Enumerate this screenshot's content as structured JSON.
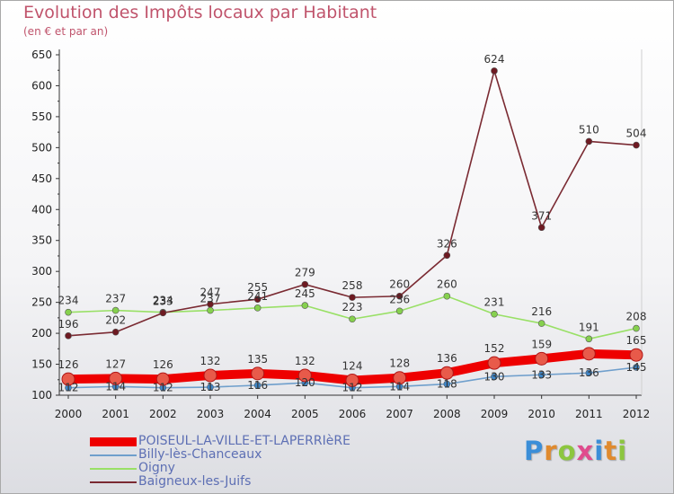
{
  "title": "Evolution des Impôts locaux par Habitant",
  "subtitle": "(en € et par an)",
  "brand": {
    "text": "Proxiti",
    "colors": [
      "#3b8ed8",
      "#e08a2e",
      "#8cc63f",
      "#e04b8d",
      "#3b8ed8",
      "#e08a2e",
      "#8cc63f"
    ]
  },
  "chart_data": {
    "type": "line",
    "title": "Evolution des Impôts locaux par Habitant",
    "subtitle": "(en € et par an)",
    "x": [
      "2000",
      "2001",
      "2002",
      "2003",
      "2004",
      "2005",
      "2006",
      "2007",
      "2008",
      "2009",
      "2010",
      "2011",
      "2012"
    ],
    "y_ticks": [
      "100",
      "150",
      "200",
      "250",
      "300",
      "350",
      "400",
      "450",
      "500",
      "550",
      "600",
      "650"
    ],
    "ylim": [
      100,
      650
    ],
    "grid": false,
    "legend_position": "bottom-left",
    "series": [
      {
        "name": "POISEUL-LA-VILLE-ET-LAPERRIèRE",
        "color": "#ee0000",
        "marker": "#e85a4a",
        "thick": true,
        "values": [
          126,
          127,
          126,
          132,
          135,
          132,
          124,
          128,
          136,
          152,
          159,
          167,
          165
        ],
        "labels": [
          "126",
          "127",
          "126",
          "132",
          "135",
          "132",
          "124",
          "128",
          "136",
          "152",
          "159",
          "",
          "165"
        ]
      },
      {
        "name": "Billy-lès-Chanceaux",
        "color": "#6f9fcc",
        "marker": "#3f86c8",
        "thick": false,
        "values": [
          112,
          114,
          112,
          113,
          116,
          120,
          112,
          114,
          118,
          130,
          133,
          136,
          145
        ],
        "labels": [
          "112",
          "114",
          "112",
          "113",
          "116",
          "120",
          "112",
          "114",
          "118",
          "130",
          "133",
          "136",
          "145"
        ]
      },
      {
        "name": "Oigny",
        "color": "#99e066",
        "marker": "#86d04e",
        "thick": false,
        "values": [
          234,
          237,
          234,
          237,
          241,
          245,
          223,
          236,
          260,
          231,
          216,
          191,
          208
        ],
        "labels": [
          "234",
          "237",
          "234",
          "237",
          "241",
          "245",
          "223",
          "236",
          "260",
          "231",
          "216",
          "191",
          "208"
        ]
      },
      {
        "name": "Baigneux-les-Juifs",
        "color": "#7a2a32",
        "marker": "#6e1a22",
        "thick": false,
        "values": [
          196,
          202,
          233,
          247,
          255,
          279,
          258,
          260,
          326,
          624,
          371,
          510,
          504
        ],
        "labels": [
          "196",
          "202",
          "233",
          "247",
          "255",
          "279",
          "258",
          "260",
          "326",
          "624",
          "371",
          "510",
          "504"
        ]
      }
    ]
  }
}
